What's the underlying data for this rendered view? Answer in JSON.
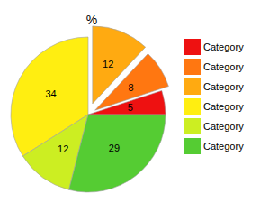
{
  "chart_data": {
    "type": "pie",
    "title": "%",
    "categories": [
      "Category",
      "Category",
      "Category",
      "Category",
      "Category",
      "Category"
    ],
    "values": [
      5,
      8,
      12,
      34,
      12,
      29
    ],
    "colors": [
      "#ee1111",
      "#ff7711",
      "#ffaa11",
      "#ffee11",
      "#ccee22",
      "#55cc33"
    ],
    "data_labels": true,
    "legend": "right"
  }
}
